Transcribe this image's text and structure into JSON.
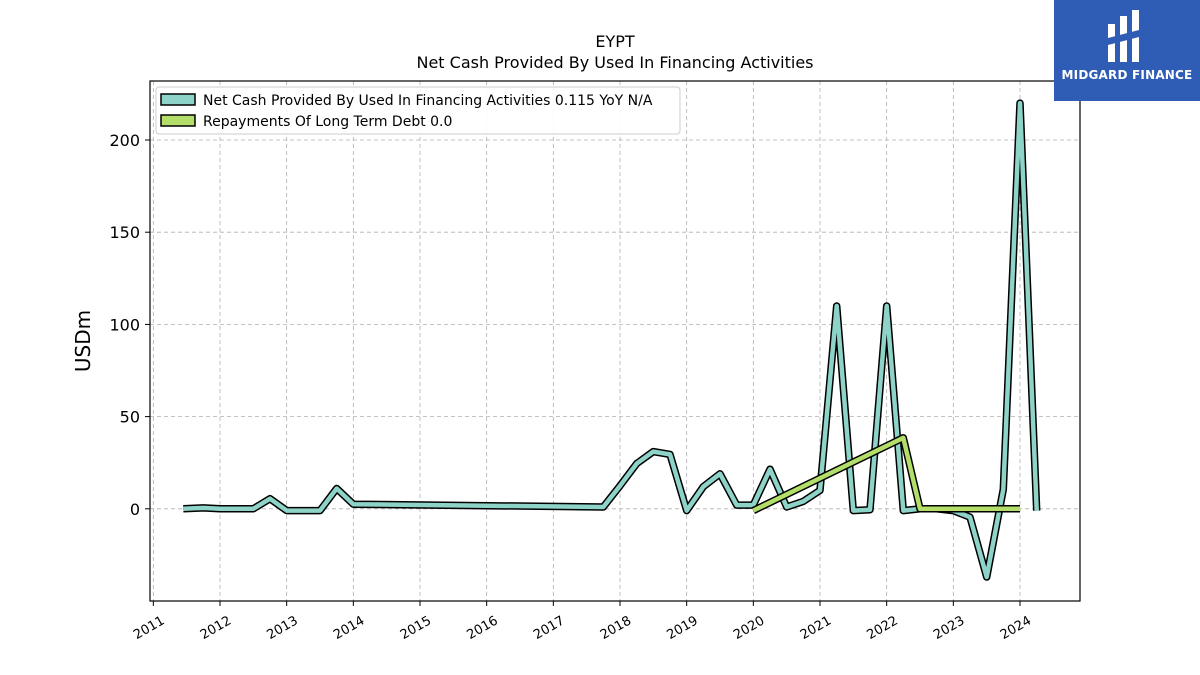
{
  "chart_data": {
    "type": "line",
    "title": "EYPT",
    "subtitle": "Net Cash Provided By Used In Financing Activities",
    "xlabel": "",
    "ylabel": "USDm",
    "xlim": [
      2010.95,
      2024.9
    ],
    "ylim": [
      -50,
      232
    ],
    "x_ticks": [
      "2011",
      "2012",
      "2013",
      "2014",
      "2015",
      "2016",
      "2017",
      "2018",
      "2019",
      "2020",
      "2021",
      "2022",
      "2023",
      "2024"
    ],
    "y_ticks": [
      0,
      50,
      100,
      150,
      200
    ],
    "grid": true,
    "legend_position": "top-left",
    "series": [
      {
        "name": "Net Cash Provided By Used In Financing Activities  0.115 YoY N/A",
        "color": "#8dd3c7",
        "x": [
          2011.45,
          2011.75,
          2012.0,
          2012.25,
          2012.5,
          2012.75,
          2013.0,
          2013.25,
          2013.5,
          2013.75,
          2014.0,
          2017.75,
          2018.0,
          2018.25,
          2018.5,
          2018.75,
          2019.0,
          2019.25,
          2019.5,
          2019.75,
          2020.0,
          2020.25,
          2020.5,
          2020.75,
          2021.0,
          2021.25,
          2021.5,
          2021.75,
          2022.0,
          2022.25,
          2022.5,
          2022.75,
          2023.0,
          2023.25,
          2023.5,
          2023.75,
          2024.0,
          2024.25
        ],
        "values": [
          0,
          0.5,
          0,
          0,
          0,
          5.5,
          -1,
          -1,
          -1,
          11,
          2.5,
          1,
          12.5,
          24.5,
          31,
          29.5,
          -1,
          12,
          19,
          2,
          2,
          21.5,
          1,
          4,
          10,
          110,
          -1,
          -0.5,
          110,
          -1,
          0,
          0,
          -1,
          -4.5,
          -37,
          10.5,
          220,
          -1
        ]
      },
      {
        "name": "Repayments Of Long Term Debt  0.0",
        "color": "#b3de69",
        "x": [
          2020.0,
          2022.25,
          2022.5,
          2024.0
        ],
        "values": [
          -1,
          38.5,
          0,
          0
        ]
      }
    ]
  },
  "logo": {
    "text": "MIDGARD FINANCE"
  }
}
